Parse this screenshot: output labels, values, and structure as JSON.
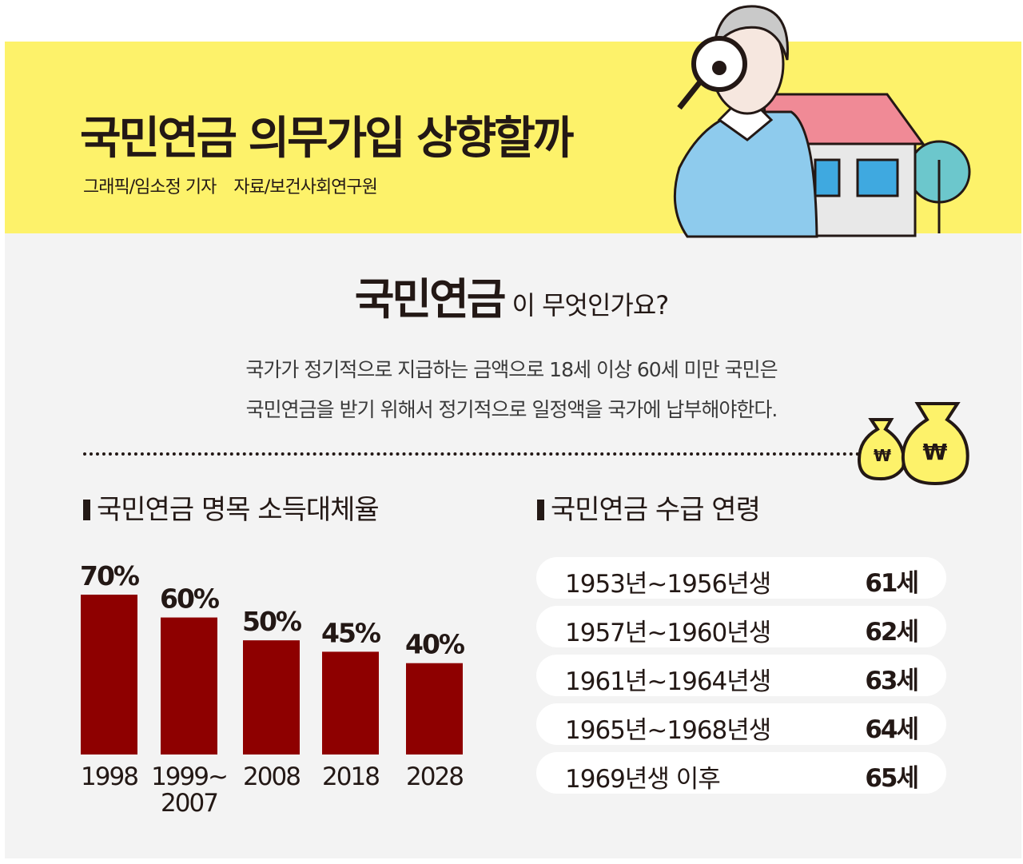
{
  "header": {
    "title": "국민연금 의무가입 상향할까",
    "credit_graphic": "그래픽/임소정 기자",
    "credit_source": "자료/보건사회연구원"
  },
  "question": {
    "bold": "국민연금",
    "rest": "이 무엇인가요?"
  },
  "description": [
    "국가가 정기적으로 지급하는 금액으로 18세 이상 60세 미만 국민은",
    "국민연금을 받기 위해서 정기적으로 일정액을 국가에 납부해야한다."
  ],
  "icons": {
    "money_bag": "won-money-bag-icon",
    "currency": "₩"
  },
  "colors": {
    "yellow": "#fdf26a",
    "bar": "#8e0000",
    "background": "#f3f3f3"
  },
  "chart_data": {
    "type": "bar",
    "title": "국민연금 명목 소득대체율",
    "categories": [
      "1998",
      "1999~\n2007",
      "2008",
      "2018",
      "2028"
    ],
    "category_lines": [
      [
        "1998"
      ],
      [
        "1999~",
        "2007"
      ],
      [
        "2008"
      ],
      [
        "2018"
      ],
      [
        "2028"
      ]
    ],
    "values": [
      70,
      60,
      50,
      45,
      40
    ],
    "data_labels": [
      "70%",
      "60%",
      "50%",
      "45%",
      "40%"
    ],
    "ylim": [
      0,
      70
    ],
    "grid": false
  },
  "age_table": {
    "title": "국민연금 수급 연령",
    "rows": [
      {
        "birth": "1953년~1956년생",
        "age": "61세"
      },
      {
        "birth": "1957년~1960년생",
        "age": "62세"
      },
      {
        "birth": "1961년~1964년생",
        "age": "63세"
      },
      {
        "birth": "1965년~1968년생",
        "age": "64세"
      },
      {
        "birth": "1969년생 이후",
        "age": "65세"
      }
    ]
  }
}
